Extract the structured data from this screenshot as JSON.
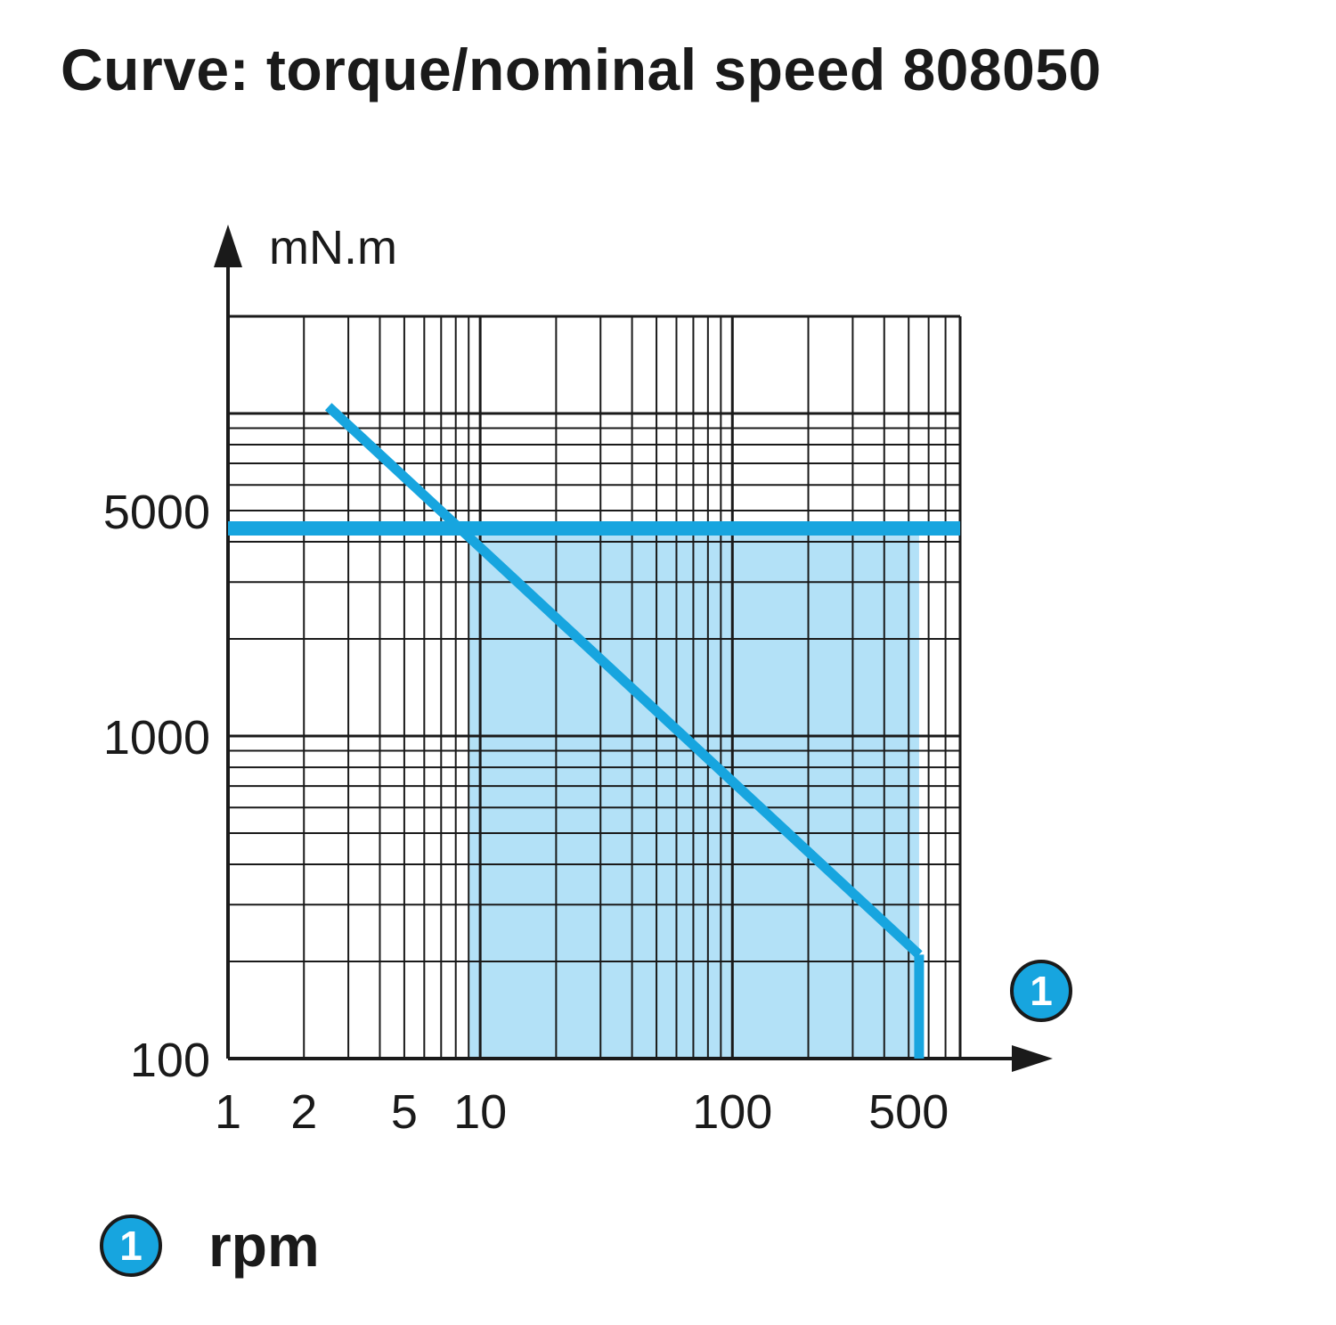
{
  "title": "Curve: torque/nominal speed 808050",
  "colors": {
    "accent": "#17a5df",
    "area_fill": "#b3e1f7",
    "grid": "#1a1a1a"
  },
  "chart_data": {
    "type": "line",
    "title": "Curve: torque/nominal speed 808050",
    "xscale": "log",
    "yscale": "log",
    "xlim": [
      1,
      800
    ],
    "ylim": [
      100,
      20000
    ],
    "x_ticks": [
      "1",
      "2",
      "5",
      "10",
      "100",
      "500"
    ],
    "x_tick_values": [
      1,
      2,
      5,
      10,
      100,
      500
    ],
    "y_ticks": [
      "100",
      "1000",
      "5000"
    ],
    "y_tick_values": [
      100,
      1000,
      5000
    ],
    "ylabel": "mN.m",
    "x_marker": "1",
    "grid": true,
    "series": [
      {
        "x": [
          2.5,
          550
        ],
        "y": [
          10500,
          210
        ]
      },
      {
        "x": [
          1,
          800
        ],
        "y": [
          4400,
          4400
        ]
      }
    ],
    "shaded_region": {
      "x": [
        10,
        550
      ],
      "upper_y": 4400,
      "lower_y": 100
    }
  },
  "legend": {
    "badge": "1",
    "label": "rpm"
  }
}
